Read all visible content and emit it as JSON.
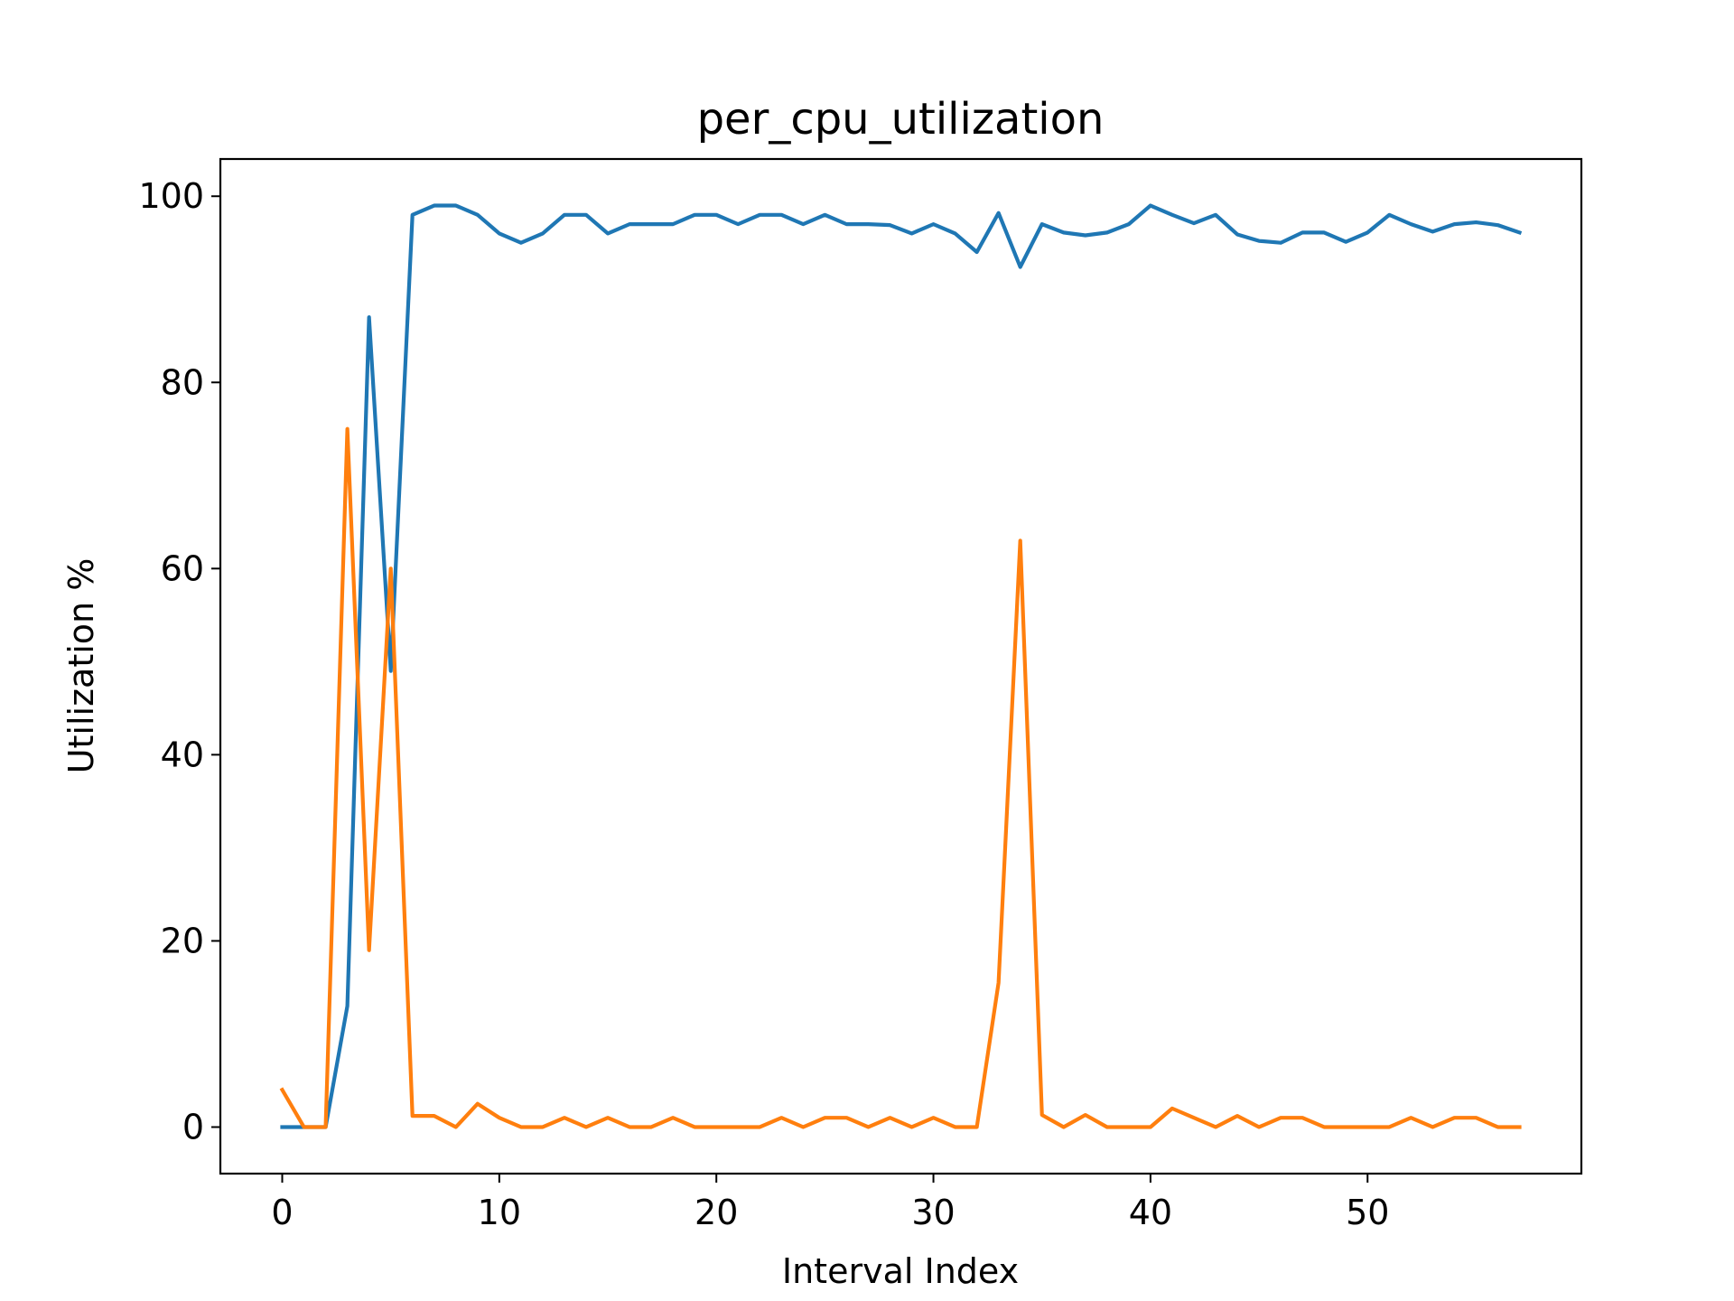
{
  "chart_data": {
    "type": "line",
    "title": "per_cpu_utilization",
    "xlabel": "Interval Index",
    "ylabel": "Utilization %",
    "xlim": [
      -2.85,
      59.85
    ],
    "ylim": [
      -5,
      104
    ],
    "xticks": [
      0,
      10,
      20,
      30,
      40,
      50
    ],
    "yticks": [
      0,
      20,
      40,
      60,
      80,
      100
    ],
    "grid": false,
    "legend": "none",
    "x": [
      0,
      1,
      2,
      3,
      4,
      5,
      6,
      7,
      8,
      9,
      10,
      11,
      12,
      13,
      14,
      15,
      16,
      17,
      18,
      19,
      20,
      21,
      22,
      23,
      24,
      25,
      26,
      27,
      28,
      29,
      30,
      31,
      32,
      33,
      34,
      35,
      36,
      37,
      38,
      39,
      40,
      41,
      42,
      43,
      44,
      45,
      46,
      47,
      48,
      49,
      50,
      51,
      52,
      53,
      54,
      55,
      56,
      57
    ],
    "series": [
      {
        "color": "#1f77b4",
        "values": [
          0,
          0,
          0,
          13,
          87,
          49,
          98,
          99,
          99,
          98,
          96,
          95,
          96,
          98,
          98,
          96,
          97,
          97,
          97,
          98,
          98,
          97,
          98,
          98,
          97,
          98,
          97,
          97,
          96.9,
          96,
          97,
          96,
          94,
          98.2,
          92.4,
          97,
          96.1,
          95.8,
          96.1,
          97,
          99,
          98,
          97.1,
          98,
          95.9,
          95.2,
          95,
          96.1,
          96.1,
          95.1,
          96.1,
          98,
          97,
          96.2,
          97,
          97.2,
          96.9,
          96.1
        ]
      },
      {
        "color": "#ff7f0e",
        "values": [
          4,
          0,
          0,
          75,
          19,
          60,
          1.2,
          1.2,
          0,
          2.5,
          1,
          0,
          0,
          1,
          0,
          1,
          0,
          0,
          1,
          0,
          0,
          0,
          0,
          1,
          0,
          1,
          1,
          0,
          1,
          0,
          1,
          0,
          0,
          15.5,
          63,
          1.3,
          0,
          1.3,
          0,
          0,
          0,
          2,
          1,
          0,
          1.2,
          0,
          1,
          1,
          0,
          0,
          0,
          0,
          1,
          0,
          1,
          1,
          0,
          0
        ]
      }
    ]
  }
}
